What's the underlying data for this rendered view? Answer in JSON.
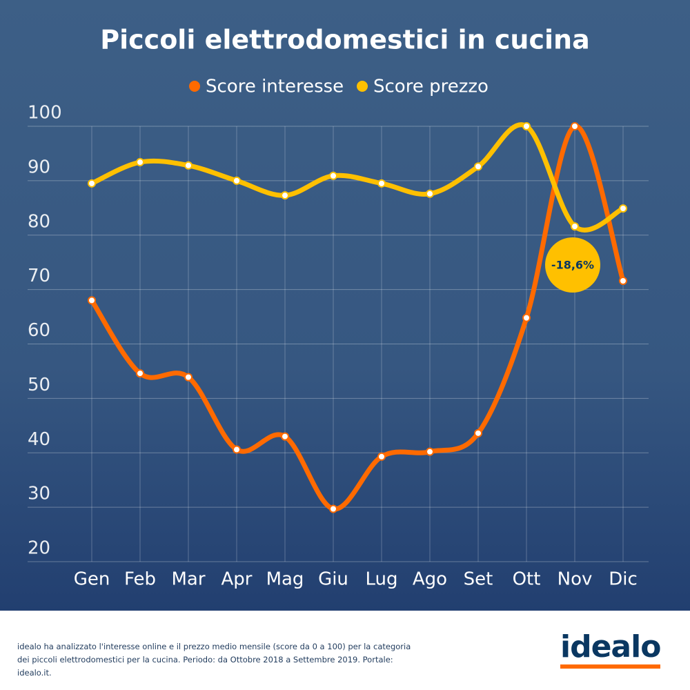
{
  "chart_data": {
    "type": "line",
    "title": "Piccoli elettrodomestici in cucina",
    "categories": [
      "Gen",
      "Feb",
      "Mar",
      "Apr",
      "Mag",
      "Giu",
      "Lug",
      "Ago",
      "Set",
      "Ott",
      "Nov",
      "Dic"
    ],
    "series": [
      {
        "name": "Score interesse",
        "color": "#ff6a00",
        "values": [
          68,
          54.6,
          53.9,
          40.6,
          43,
          29.7,
          39.3,
          40.2,
          43.6,
          64.8,
          100,
          71.6
        ]
      },
      {
        "name": "Score prezzo",
        "color": "#ffc000",
        "values": [
          89.5,
          93.4,
          92.8,
          90,
          87.3,
          90.9,
          89.5,
          87.6,
          92.6,
          100,
          81.6,
          84.9
        ]
      }
    ],
    "ylim": [
      20,
      100
    ],
    "yticks": [
      20,
      30,
      40,
      50,
      60,
      70,
      80,
      90,
      100
    ],
    "grid": true,
    "annotation": {
      "text": "-18,6%"
    }
  },
  "footer": {
    "note": "idealo ha analizzato l'interesse online e il prezzo medio mensile (score da 0 a 100) per la categoria dei piccoli elettrodomestici per la cucina. Periodo: da Ottobre 2018 a Settembre 2019. Portale: idealo.it.",
    "logo": "idealo"
  }
}
